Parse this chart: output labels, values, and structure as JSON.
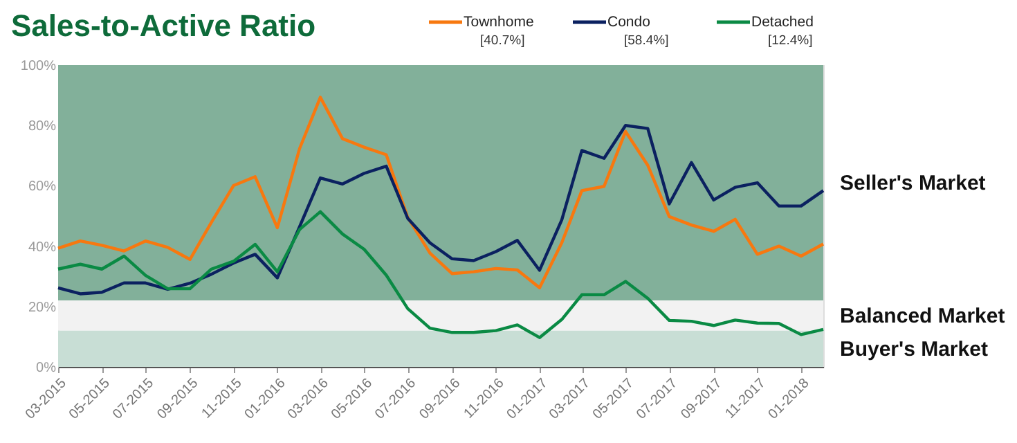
{
  "chart_data": {
    "type": "line",
    "title": "Sales-to-Active Ratio",
    "x": [
      "2015-03",
      "2015-04",
      "2015-05",
      "2015-06",
      "2015-07",
      "2015-08",
      "2015-09",
      "2015-10",
      "2015-11",
      "2015-12",
      "2016-01",
      "2016-02",
      "2016-03",
      "2016-04",
      "2016-05",
      "2016-06",
      "2016-07",
      "2016-08",
      "2016-09",
      "2016-10",
      "2016-11",
      "2016-12",
      "2017-01",
      "2017-02",
      "2017-03",
      "2017-04",
      "2017-05",
      "2017-06",
      "2017-07",
      "2017-08",
      "2017-09",
      "2017-10",
      "2017-11",
      "2017-12",
      "2018-01",
      "2018-02"
    ],
    "series": [
      {
        "name": "Townhome",
        "color": "#f7780f",
        "values": [
          39.3,
          41.7,
          40.3,
          38.4,
          41.7,
          39.6,
          35.6,
          47.9,
          60.1,
          63,
          46.1,
          72.3,
          89.3,
          75.6,
          72.8,
          70.3,
          49.5,
          37.7,
          30.9,
          31.5,
          32.6,
          32.1,
          26.2,
          41.1,
          58.4,
          59.8,
          78,
          66.8,
          49.8,
          47,
          44.9,
          48.9,
          37.3,
          40,
          36.7,
          40.7
        ]
      },
      {
        "name": "Condo",
        "color": "#0b2160",
        "values": [
          26.2,
          24.2,
          24.7,
          27.8,
          27.8,
          25.7,
          27.7,
          30.7,
          34.4,
          37.3,
          29.5,
          46.4,
          62.6,
          60.6,
          64.1,
          66.5,
          49.2,
          41.1,
          35.8,
          35.2,
          38.2,
          41.9,
          32,
          48.7,
          71.7,
          69.1,
          80,
          79,
          54,
          67.7,
          55.3,
          59.5,
          61,
          53.3,
          53.3,
          58.4
        ]
      },
      {
        "name": "Detached",
        "color": "#0a8a44",
        "values": [
          32.4,
          34,
          32.4,
          36.7,
          30.3,
          25.9,
          25.9,
          32.4,
          35,
          40.6,
          31.5,
          45.5,
          51.4,
          44,
          39,
          30.4,
          19.3,
          12.8,
          11.4,
          11.4,
          12,
          13.9,
          9.7,
          15.7,
          23.9,
          23.9,
          28.3,
          22.7,
          15.4,
          15.1,
          13.7,
          15.5,
          14.5,
          14.4,
          10.7,
          12.4
        ]
      }
    ],
    "xlim": [
      "2015-03",
      "2018-02"
    ],
    "xticks": [
      {
        "value": "2015-03",
        "label": "03-2015"
      },
      {
        "value": "2015-05",
        "label": "05-2015"
      },
      {
        "value": "2015-07",
        "label": "07-2015"
      },
      {
        "value": "2015-09",
        "label": "09-2015"
      },
      {
        "value": "2015-11",
        "label": "11-2015"
      },
      {
        "value": "2016-01",
        "label": "01-2016"
      },
      {
        "value": "2016-03",
        "label": "03-2016"
      },
      {
        "value": "2016-05",
        "label": "05-2016"
      },
      {
        "value": "2016-07",
        "label": "07-2016"
      },
      {
        "value": "2016-09",
        "label": "09-2016"
      },
      {
        "value": "2016-11",
        "label": "11-2016"
      },
      {
        "value": "2017-01",
        "label": "01-2017"
      },
      {
        "value": "2017-03",
        "label": "03-2017"
      },
      {
        "value": "2017-05",
        "label": "05-2017"
      },
      {
        "value": "2017-07",
        "label": "07-2017"
      },
      {
        "value": "2017-09",
        "label": "09-2017"
      },
      {
        "value": "2017-11",
        "label": "11-2017"
      },
      {
        "value": "2018-01",
        "label": "01-2018"
      }
    ],
    "ylim": [
      0,
      100
    ],
    "yticks": [
      {
        "value": 0,
        "label": "0%"
      },
      {
        "value": 20,
        "label": "20%"
      },
      {
        "value": 40,
        "label": "40%"
      },
      {
        "value": 60,
        "label": "60%"
      },
      {
        "value": 80,
        "label": "80%"
      },
      {
        "value": 100,
        "label": "100%"
      }
    ],
    "bands": [
      {
        "axis": "y",
        "from": 22,
        "to": 100,
        "label": "Seller's Market",
        "color": "#82b09a"
      },
      {
        "axis": "y",
        "from": 12,
        "to": 22,
        "label": "Balanced Market",
        "color": "#f2f2f2"
      },
      {
        "axis": "y",
        "from": 0,
        "to": 12,
        "label": "Buyer's Market",
        "color": "#c8ded5"
      }
    ],
    "annotations": [
      "[40.7%]",
      "[58.4%]",
      "[12.4%]"
    ],
    "legend": "top",
    "grid": false,
    "marker": "none",
    "line_style": "solid"
  }
}
